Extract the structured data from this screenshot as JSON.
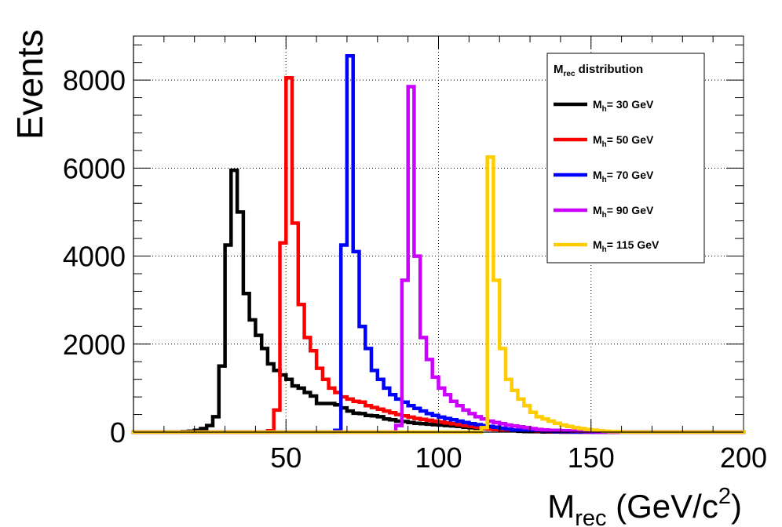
{
  "chart_data": {
    "type": "line",
    "style": "step-histogram",
    "title": "",
    "xlabel": "M_rec (GeV/c^2)",
    "xlabel_parts": {
      "main": "M",
      "sub": "rec",
      "rest": " (GeV/c",
      "sup": "2",
      "end": ")"
    },
    "ylabel": "Events",
    "xlim": [
      0,
      200
    ],
    "ylim": [
      0,
      9000
    ],
    "xticks": [
      50,
      100,
      150,
      200
    ],
    "yticks": [
      0,
      2000,
      4000,
      6000,
      8000
    ],
    "grid": true,
    "bin_width": 2,
    "legend_position": "top-right",
    "legend_title": {
      "main": "M",
      "sub": "rec",
      "rest": " distribution"
    },
    "series": [
      {
        "name": "M_h= 30 GeV",
        "label_main": "M",
        "label_sub": "h",
        "label_rest": "= 30 GeV",
        "color": "#000000",
        "bins": [
          [
            0,
            0
          ],
          [
            10,
            0
          ],
          [
            16,
            10
          ],
          [
            18,
            20
          ],
          [
            20,
            40
          ],
          [
            22,
            80
          ],
          [
            24,
            150
          ],
          [
            26,
            350
          ],
          [
            28,
            1500
          ],
          [
            30,
            4250
          ],
          [
            32,
            5950
          ],
          [
            34,
            5000
          ],
          [
            36,
            3150
          ],
          [
            38,
            2550
          ],
          [
            40,
            2200
          ],
          [
            42,
            1900
          ],
          [
            44,
            1550
          ],
          [
            46,
            1400
          ],
          [
            48,
            1300
          ],
          [
            50,
            1200
          ],
          [
            52,
            1050
          ],
          [
            54,
            1000
          ],
          [
            56,
            900
          ],
          [
            58,
            820
          ],
          [
            60,
            650
          ],
          [
            62,
            650
          ],
          [
            64,
            650
          ],
          [
            66,
            620
          ],
          [
            68,
            550
          ],
          [
            70,
            480
          ],
          [
            72,
            430
          ],
          [
            74,
            420
          ],
          [
            76,
            380
          ],
          [
            78,
            370
          ],
          [
            80,
            350
          ],
          [
            82,
            300
          ],
          [
            84,
            280
          ],
          [
            86,
            250
          ],
          [
            88,
            240
          ],
          [
            90,
            220
          ],
          [
            92,
            200
          ],
          [
            94,
            190
          ],
          [
            96,
            180
          ],
          [
            98,
            170
          ],
          [
            100,
            160
          ],
          [
            102,
            150
          ],
          [
            104,
            140
          ],
          [
            106,
            130
          ],
          [
            108,
            110
          ],
          [
            110,
            100
          ],
          [
            112,
            90
          ],
          [
            114,
            80
          ],
          [
            116,
            70
          ],
          [
            118,
            60
          ],
          [
            120,
            50
          ],
          [
            122,
            40
          ],
          [
            124,
            30
          ],
          [
            126,
            20
          ],
          [
            128,
            15
          ],
          [
            130,
            10
          ],
          [
            134,
            5
          ],
          [
            140,
            0
          ],
          [
            200,
            0
          ]
        ]
      },
      {
        "name": "M_h= 50 GeV",
        "label_main": "M",
        "label_sub": "h",
        "label_rest": "= 50 GeV",
        "color": "#ff0000",
        "bins": [
          [
            0,
            0
          ],
          [
            40,
            0
          ],
          [
            44,
            30
          ],
          [
            46,
            500
          ],
          [
            48,
            4300
          ],
          [
            50,
            8050
          ],
          [
            52,
            4750
          ],
          [
            54,
            2900
          ],
          [
            56,
            2150
          ],
          [
            58,
            1850
          ],
          [
            60,
            1450
          ],
          [
            62,
            1200
          ],
          [
            64,
            1000
          ],
          [
            66,
            900
          ],
          [
            68,
            800
          ],
          [
            70,
            750
          ],
          [
            72,
            700
          ],
          [
            74,
            680
          ],
          [
            76,
            600
          ],
          [
            78,
            560
          ],
          [
            80,
            520
          ],
          [
            82,
            480
          ],
          [
            84,
            440
          ],
          [
            86,
            400
          ],
          [
            88,
            370
          ],
          [
            90,
            340
          ],
          [
            92,
            310
          ],
          [
            94,
            290
          ],
          [
            96,
            270
          ],
          [
            98,
            250
          ],
          [
            100,
            230
          ],
          [
            102,
            210
          ],
          [
            104,
            190
          ],
          [
            106,
            170
          ],
          [
            108,
            150
          ],
          [
            110,
            130
          ],
          [
            112,
            110
          ],
          [
            114,
            90
          ],
          [
            116,
            70
          ],
          [
            118,
            60
          ],
          [
            120,
            50
          ],
          [
            124,
            40
          ],
          [
            128,
            30
          ],
          [
            132,
            20
          ],
          [
            136,
            10
          ],
          [
            140,
            5
          ],
          [
            146,
            0
          ],
          [
            200,
            0
          ]
        ]
      },
      {
        "name": "M_h= 70 GeV",
        "label_main": "M",
        "label_sub": "h",
        "label_rest": "= 70 GeV",
        "color": "#0000ff",
        "bins": [
          [
            0,
            0
          ],
          [
            62,
            0
          ],
          [
            66,
            40
          ],
          [
            68,
            4250
          ],
          [
            70,
            8550
          ],
          [
            72,
            4100
          ],
          [
            74,
            2400
          ],
          [
            76,
            1900
          ],
          [
            78,
            1400
          ],
          [
            80,
            1200
          ],
          [
            82,
            1000
          ],
          [
            84,
            850
          ],
          [
            86,
            750
          ],
          [
            88,
            680
          ],
          [
            90,
            600
          ],
          [
            92,
            540
          ],
          [
            94,
            480
          ],
          [
            96,
            420
          ],
          [
            98,
            380
          ],
          [
            100,
            340
          ],
          [
            102,
            310
          ],
          [
            104,
            280
          ],
          [
            106,
            250
          ],
          [
            108,
            220
          ],
          [
            110,
            190
          ],
          [
            112,
            170
          ],
          [
            114,
            150
          ],
          [
            116,
            130
          ],
          [
            118,
            110
          ],
          [
            120,
            90
          ],
          [
            122,
            70
          ],
          [
            124,
            50
          ],
          [
            126,
            40
          ],
          [
            130,
            30
          ],
          [
            134,
            20
          ],
          [
            138,
            10
          ],
          [
            144,
            5
          ],
          [
            150,
            0
          ],
          [
            200,
            0
          ]
        ]
      },
      {
        "name": "M_h= 90 GeV",
        "label_main": "M",
        "label_sub": "h",
        "label_rest": "= 90 GeV",
        "color": "#cc00ff",
        "bins": [
          [
            0,
            0
          ],
          [
            84,
            0
          ],
          [
            86,
            150
          ],
          [
            88,
            3450
          ],
          [
            90,
            7850
          ],
          [
            92,
            4000
          ],
          [
            94,
            2150
          ],
          [
            96,
            1650
          ],
          [
            98,
            1250
          ],
          [
            100,
            1000
          ],
          [
            102,
            850
          ],
          [
            104,
            700
          ],
          [
            106,
            600
          ],
          [
            108,
            500
          ],
          [
            110,
            420
          ],
          [
            112,
            350
          ],
          [
            114,
            300
          ],
          [
            116,
            250
          ],
          [
            118,
            220
          ],
          [
            120,
            190
          ],
          [
            122,
            160
          ],
          [
            124,
            140
          ],
          [
            126,
            120
          ],
          [
            128,
            100
          ],
          [
            130,
            80
          ],
          [
            132,
            60
          ],
          [
            134,
            50
          ],
          [
            136,
            40
          ],
          [
            140,
            30
          ],
          [
            144,
            20
          ],
          [
            148,
            10
          ],
          [
            152,
            5
          ],
          [
            158,
            0
          ],
          [
            200,
            0
          ]
        ]
      },
      {
        "name": "M_h= 115 GeV",
        "label_main": "M",
        "label_sub": "h",
        "label_rest": "= 115 GeV",
        "color": "#ffcc00",
        "bins": [
          [
            0,
            0
          ],
          [
            112,
            0
          ],
          [
            114,
            100
          ],
          [
            116,
            6250
          ],
          [
            118,
            3450
          ],
          [
            120,
            1900
          ],
          [
            122,
            1200
          ],
          [
            124,
            950
          ],
          [
            126,
            750
          ],
          [
            128,
            600
          ],
          [
            130,
            450
          ],
          [
            132,
            350
          ],
          [
            134,
            300
          ],
          [
            136,
            250
          ],
          [
            138,
            200
          ],
          [
            140,
            160
          ],
          [
            142,
            130
          ],
          [
            144,
            100
          ],
          [
            146,
            80
          ],
          [
            148,
            60
          ],
          [
            150,
            45
          ],
          [
            152,
            30
          ],
          [
            154,
            20
          ],
          [
            156,
            10
          ],
          [
            160,
            0
          ],
          [
            200,
            0
          ]
        ]
      }
    ]
  }
}
